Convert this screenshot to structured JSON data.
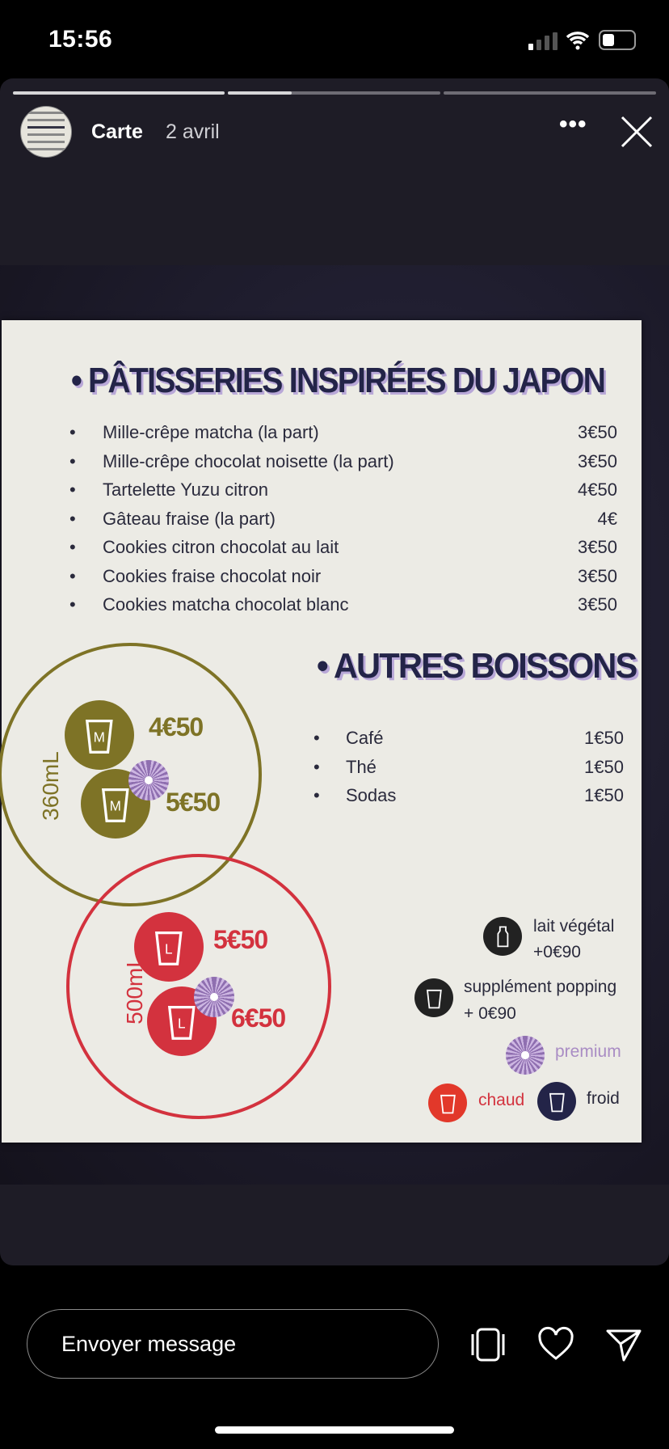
{
  "status_bar": {
    "time": "15:56",
    "signal": "signal-icon",
    "wifi": "wifi-icon",
    "battery": "battery-icon"
  },
  "story": {
    "user": "Carte",
    "date": "2 avril",
    "progress": [
      1.0,
      0.3,
      0.0
    ],
    "more": "more-icon",
    "close": "close-icon"
  },
  "menu": {
    "patisseries": {
      "title": "PÂTISSERIES INSPIRÉES DU JAPON",
      "items": [
        {
          "name": "Mille-crêpe matcha (la part)",
          "price": "3€50"
        },
        {
          "name": "Mille-crêpe chocolat noisette (la part)",
          "price": "3€50"
        },
        {
          "name": "Tartelette Yuzu citron",
          "price": "4€50"
        },
        {
          "name": "Gâteau fraise (la part)",
          "price": "4€"
        },
        {
          "name": "Cookies citron chocolat au lait",
          "price": "3€50"
        },
        {
          "name": "Cookies fraise chocolat noir",
          "price": "3€50"
        },
        {
          "name": "Cookies matcha chocolat blanc",
          "price": "3€50"
        }
      ]
    },
    "boissons": {
      "title": "AUTRES BOISSONS",
      "items": [
        {
          "name": "Café",
          "price": "1€50"
        },
        {
          "name": "Thé",
          "price": "1€50"
        },
        {
          "name": "Sodas",
          "price": "1€50"
        }
      ]
    },
    "sizes": [
      {
        "label": "360mL",
        "price": "4€50",
        "premium_price": "5€50",
        "color": "#7e7326",
        "cup_letter": "M"
      },
      {
        "label": "500mL",
        "price": "5€50",
        "premium_price": "6€50",
        "color": "#d3323e",
        "cup_letter": "L"
      }
    ],
    "legend": {
      "lait": {
        "label": "lait végétal",
        "price": "+0€90"
      },
      "popping": {
        "label": "supplément popping",
        "price": "+ 0€90"
      },
      "premium": "premium",
      "chaud": "chaud",
      "froid": "froid"
    }
  },
  "footer": {
    "placeholder": "Envoyer message",
    "icons": [
      "cards-icon",
      "heart-icon",
      "send-icon"
    ]
  }
}
